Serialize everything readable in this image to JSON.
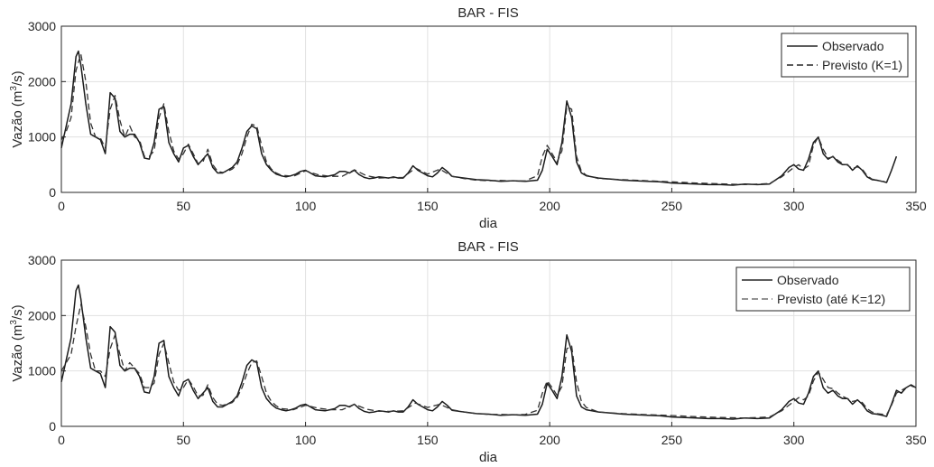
{
  "chart_data": [
    {
      "type": "line",
      "title": "BAR - FIS",
      "xlabel": "dia",
      "ylabel": "Vazão (m",
      "ylabel_sup": "3",
      "ylabel_tail": "/s)",
      "xlim": [
        0,
        350
      ],
      "ylim": [
        0,
        3000
      ],
      "xticks": [
        "0",
        "50",
        "100",
        "150",
        "200",
        "250",
        "300",
        "350"
      ],
      "yticks": [
        "0",
        "1000",
        "2000",
        "3000"
      ],
      "grid": true,
      "legend_position": "top-right",
      "legend": [
        "Observado",
        "Previsto (K=1)"
      ],
      "series": [
        {
          "name": "Observado",
          "style": "solid",
          "x": [
            0,
            2,
            4,
            6,
            7,
            8,
            10,
            12,
            14,
            16,
            18,
            20,
            22,
            24,
            26,
            28,
            30,
            32,
            34,
            36,
            38,
            40,
            42,
            44,
            46,
            48,
            50,
            52,
            54,
            56,
            58,
            60,
            62,
            64,
            66,
            68,
            70,
            72,
            74,
            76,
            78,
            80,
            82,
            84,
            86,
            88,
            90,
            92,
            94,
            96,
            98,
            100,
            102,
            104,
            106,
            108,
            110,
            112,
            114,
            116,
            118,
            120,
            122,
            124,
            126,
            128,
            130,
            132,
            134,
            136,
            138,
            140,
            142,
            144,
            146,
            148,
            150,
            152,
            154,
            156,
            158,
            160,
            165,
            170,
            175,
            180,
            185,
            190,
            195,
            197,
            199,
            201,
            203,
            205,
            207,
            209,
            211,
            213,
            215,
            220,
            225,
            230,
            235,
            240,
            245,
            250,
            255,
            260,
            265,
            270,
            275,
            280,
            285,
            290,
            295,
            298,
            300,
            302,
            304,
            306,
            308,
            310,
            312,
            314,
            316,
            318,
            320,
            322,
            324,
            326,
            328,
            330,
            332,
            334,
            336,
            338,
            340,
            342
          ],
          "y": [
            800,
            1200,
            1600,
            2450,
            2550,
            2300,
            1600,
            1050,
            1000,
            950,
            700,
            1800,
            1700,
            1100,
            1000,
            1050,
            1050,
            900,
            620,
            600,
            900,
            1500,
            1550,
            900,
            700,
            550,
            800,
            850,
            650,
            500,
            600,
            700,
            450,
            350,
            350,
            400,
            450,
            550,
            800,
            1100,
            1200,
            1150,
            700,
            500,
            400,
            330,
            300,
            280,
            300,
            330,
            380,
            400,
            350,
            300,
            290,
            280,
            300,
            320,
            380,
            380,
            350,
            400,
            320,
            270,
            250,
            260,
            280,
            270,
            260,
            280,
            260,
            260,
            350,
            480,
            400,
            350,
            300,
            280,
            350,
            450,
            380,
            290,
            260,
            230,
            220,
            200,
            210,
            200,
            220,
            400,
            780,
            650,
            500,
            900,
            1650,
            1350,
            550,
            350,
            300,
            260,
            240,
            220,
            210,
            200,
            190,
            170,
            160,
            150,
            140,
            140,
            130,
            150,
            140,
            150,
            300,
            450,
            500,
            420,
            400,
            600,
            900,
            1000,
            700,
            600,
            650,
            550,
            500,
            500,
            400,
            480,
            400,
            280,
            230,
            220,
            200,
            180,
            400,
            650
          ]
        },
        {
          "name": "Previsto (K=1)",
          "style": "dashed",
          "x": [
            0,
            2,
            4,
            6,
            8,
            10,
            12,
            14,
            16,
            18,
            20,
            22,
            24,
            26,
            28,
            30,
            32,
            34,
            36,
            38,
            40,
            42,
            44,
            46,
            48,
            50,
            52,
            54,
            56,
            58,
            60,
            62,
            64,
            66,
            68,
            70,
            72,
            74,
            76,
            78,
            80,
            82,
            84,
            86,
            88,
            90,
            95,
            100,
            105,
            110,
            115,
            120,
            125,
            130,
            135,
            140,
            145,
            150,
            155,
            160,
            165,
            170,
            175,
            180,
            185,
            190,
            195,
            197,
            199,
            201,
            203,
            205,
            207,
            209,
            211,
            213,
            215,
            220,
            230,
            240,
            250,
            260,
            270,
            280,
            290,
            295,
            300,
            302,
            304,
            306,
            308,
            310,
            312,
            314,
            316,
            318,
            320,
            322,
            324,
            326,
            328,
            330,
            332,
            334,
            336,
            338,
            340
          ],
          "y": [
            950,
            1100,
            1350,
            2200,
            2500,
            2000,
            1250,
            1000,
            980,
            800,
            1500,
            1750,
            1300,
            1000,
            1200,
            1000,
            950,
            650,
            650,
            750,
            1350,
            1600,
            1100,
            750,
            600,
            700,
            870,
            700,
            520,
            550,
            780,
            500,
            380,
            360,
            380,
            420,
            500,
            700,
            1000,
            1230,
            1200,
            850,
            550,
            420,
            350,
            310,
            290,
            390,
            320,
            290,
            290,
            410,
            300,
            260,
            265,
            270,
            440,
            330,
            420,
            290,
            250,
            220,
            210,
            215,
            205,
            210,
            300,
            650,
            850,
            700,
            550,
            750,
            1550,
            1500,
            650,
            380,
            310,
            250,
            230,
            210,
            190,
            170,
            155,
            140,
            160,
            280,
            450,
            500,
            420,
            480,
            850,
            1000,
            780,
            620,
            640,
            580,
            520,
            490,
            430,
            460,
            420,
            300,
            240,
            220,
            200,
            190,
            380
          ]
        }
      ]
    },
    {
      "type": "line",
      "title": "BAR - FIS",
      "xlabel": "dia",
      "ylabel": "Vazão (m",
      "ylabel_sup": "3",
      "ylabel_tail": "/s)",
      "xlim": [
        0,
        350
      ],
      "ylim": [
        0,
        3000
      ],
      "xticks": [
        "0",
        "50",
        "100",
        "150",
        "200",
        "250",
        "300",
        "350"
      ],
      "yticks": [
        "0",
        "1000",
        "2000",
        "3000"
      ],
      "grid": true,
      "legend_position": "top-right",
      "legend": [
        "Observado",
        "Previsto (até K=12)"
      ],
      "series": [
        {
          "name": "Observado",
          "style": "solid",
          "x": [
            0,
            2,
            4,
            6,
            7,
            8,
            10,
            12,
            14,
            16,
            18,
            20,
            22,
            24,
            26,
            28,
            30,
            32,
            34,
            36,
            38,
            40,
            42,
            44,
            46,
            48,
            50,
            52,
            54,
            56,
            58,
            60,
            62,
            64,
            66,
            68,
            70,
            72,
            74,
            76,
            78,
            80,
            82,
            84,
            86,
            88,
            90,
            92,
            94,
            96,
            98,
            100,
            102,
            104,
            106,
            108,
            110,
            112,
            114,
            116,
            118,
            120,
            122,
            124,
            126,
            128,
            130,
            132,
            134,
            136,
            138,
            140,
            142,
            144,
            146,
            148,
            150,
            152,
            154,
            156,
            158,
            160,
            165,
            170,
            175,
            180,
            185,
            190,
            195,
            197,
            199,
            201,
            203,
            205,
            207,
            209,
            211,
            213,
            215,
            220,
            225,
            230,
            235,
            240,
            245,
            250,
            255,
            260,
            265,
            270,
            275,
            280,
            285,
            290,
            295,
            298,
            300,
            302,
            304,
            306,
            308,
            310,
            312,
            314,
            316,
            318,
            320,
            322,
            324,
            326,
            328,
            330,
            332,
            334,
            336,
            338,
            340,
            342,
            344,
            346,
            348,
            350
          ],
          "y": [
            800,
            1200,
            1600,
            2450,
            2550,
            2300,
            1600,
            1050,
            1000,
            950,
            700,
            1800,
            1700,
            1100,
            1000,
            1050,
            1050,
            900,
            620,
            600,
            900,
            1500,
            1550,
            900,
            700,
            550,
            800,
            850,
            650,
            500,
            600,
            700,
            450,
            350,
            350,
            400,
            450,
            550,
            800,
            1100,
            1200,
            1150,
            700,
            500,
            400,
            330,
            300,
            280,
            300,
            330,
            380,
            400,
            350,
            300,
            290,
            280,
            300,
            320,
            380,
            380,
            350,
            400,
            320,
            270,
            250,
            260,
            280,
            270,
            260,
            280,
            260,
            260,
            350,
            480,
            400,
            350,
            300,
            280,
            350,
            450,
            380,
            290,
            260,
            230,
            220,
            200,
            210,
            200,
            220,
            400,
            780,
            650,
            500,
            900,
            1650,
            1350,
            550,
            350,
            300,
            260,
            240,
            220,
            210,
            200,
            190,
            170,
            160,
            150,
            140,
            140,
            130,
            150,
            140,
            150,
            300,
            450,
            500,
            420,
            400,
            600,
            900,
            1000,
            700,
            600,
            650,
            550,
            500,
            500,
            400,
            480,
            400,
            280,
            230,
            220,
            200,
            180,
            400,
            650,
            600,
            700,
            750,
            700
          ]
        },
        {
          "name": "Previsto (até K=12)",
          "style": "dashed",
          "x": [
            0,
            2,
            4,
            6,
            8,
            10,
            12,
            14,
            16,
            18,
            20,
            22,
            24,
            26,
            28,
            30,
            32,
            34,
            36,
            38,
            40,
            42,
            44,
            46,
            48,
            50,
            52,
            54,
            56,
            58,
            60,
            62,
            64,
            66,
            68,
            70,
            72,
            74,
            76,
            78,
            80,
            82,
            84,
            86,
            88,
            90,
            95,
            100,
            105,
            110,
            115,
            120,
            125,
            130,
            135,
            140,
            145,
            150,
            155,
            160,
            165,
            170,
            175,
            180,
            185,
            190,
            195,
            197,
            199,
            201,
            203,
            205,
            207,
            209,
            211,
            213,
            215,
            220,
            230,
            240,
            250,
            260,
            270,
            280,
            290,
            295,
            300,
            302,
            304,
            306,
            308,
            310,
            312,
            314,
            316,
            318,
            320,
            322,
            324,
            326,
            328,
            330,
            332,
            334,
            336,
            338,
            340,
            342,
            344,
            346,
            348,
            350
          ],
          "y": [
            1000,
            1150,
            1300,
            1800,
            2200,
            1800,
            1300,
            1000,
            1000,
            900,
            1400,
            1650,
            1300,
            1000,
            1150,
            1050,
            950,
            700,
            700,
            780,
            1300,
            1500,
            1150,
            800,
            650,
            700,
            850,
            720,
            550,
            560,
            750,
            520,
            400,
            380,
            400,
            430,
            520,
            700,
            950,
            1150,
            1180,
            900,
            600,
            450,
            370,
            320,
            300,
            380,
            330,
            300,
            300,
            400,
            310,
            270,
            270,
            280,
            420,
            340,
            400,
            300,
            260,
            230,
            215,
            215,
            210,
            215,
            290,
            600,
            820,
            700,
            560,
            720,
            1400,
            1450,
            800,
            450,
            340,
            260,
            230,
            210,
            195,
            175,
            160,
            150,
            170,
            280,
            450,
            520,
            480,
            550,
            820,
            980,
            850,
            700,
            680,
            600,
            540,
            500,
            450,
            470,
            430,
            320,
            260,
            230,
            220,
            210,
            380,
            600,
            650,
            700,
            730,
            700
          ]
        }
      ]
    }
  ]
}
